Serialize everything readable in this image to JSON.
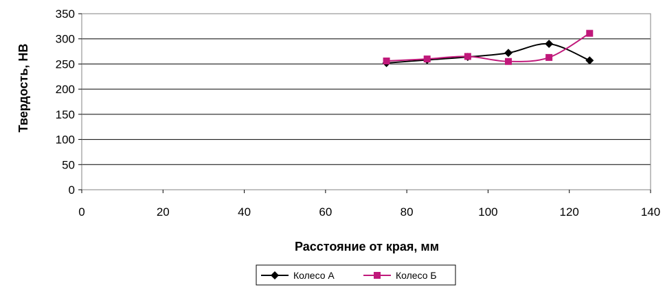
{
  "chart_data": {
    "type": "line",
    "xlabel": "Расстояние от края, мм",
    "ylabel": "Твердость, НВ",
    "xlim": [
      0,
      140
    ],
    "ylim": [
      0,
      350
    ],
    "xticks": [
      0,
      20,
      40,
      60,
      80,
      100,
      120,
      140
    ],
    "yticks": [
      0,
      50,
      100,
      150,
      200,
      250,
      300,
      350
    ],
    "grid": "horizontal",
    "legend_position": "bottom",
    "series": [
      {
        "name": "Колесо А",
        "color": "#000000",
        "marker": "diamond",
        "x": [
          75,
          85,
          95,
          105,
          115,
          125
        ],
        "y": [
          252,
          258,
          264,
          272,
          290,
          257
        ]
      },
      {
        "name": "Колесо Б",
        "color": "#c0187a",
        "marker": "square",
        "x": [
          75,
          85,
          95,
          105,
          115,
          125
        ],
        "y": [
          256,
          260,
          265,
          255,
          263,
          311
        ]
      }
    ]
  }
}
